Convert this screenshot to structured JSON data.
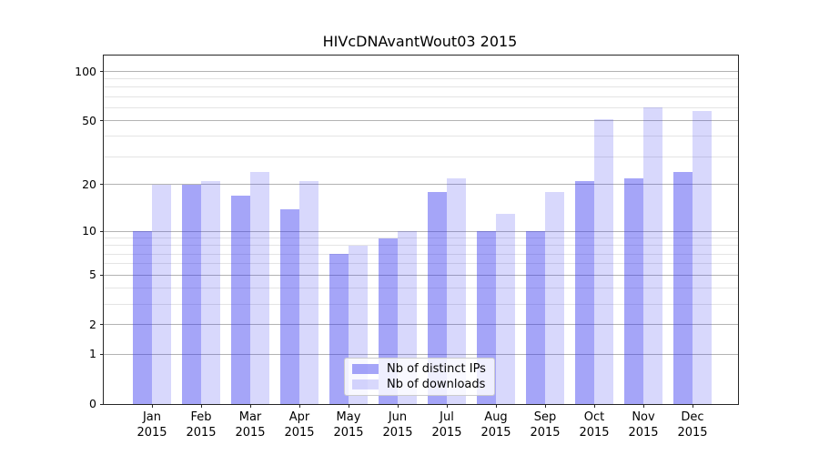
{
  "figure": {
    "background": "#ffffff",
    "spine_color": "#262626"
  },
  "chart_data": {
    "type": "bar",
    "title": "HIVcDNAvantWout03 2015",
    "categories": [
      "Jan",
      "Feb",
      "Mar",
      "Apr",
      "May",
      "Jun",
      "Jul",
      "Aug",
      "Sep",
      "Oct",
      "Nov",
      "Dec"
    ],
    "year_label": "2015",
    "series": [
      {
        "name": "Nb of distinct IPs",
        "color": "rgba(50,50,240,0.44)",
        "values": [
          10,
          20,
          17,
          14,
          7,
          9,
          18,
          10,
          10,
          21,
          22,
          24
        ]
      },
      {
        "name": "Nb of downloads",
        "color": "rgba(50,50,240,0.19)",
        "values": [
          20,
          21,
          24,
          21,
          8,
          10,
          22,
          13,
          18,
          51,
          60,
          57
        ]
      }
    ],
    "xlabel": "",
    "ylabel": "",
    "y_axis": {
      "scale": "log1p",
      "major_ticks": [
        0,
        1,
        2,
        5,
        10,
        20,
        50,
        100
      ],
      "minor_ticks": [
        3,
        4,
        6,
        7,
        8,
        9,
        30,
        40,
        60,
        70,
        80,
        90
      ],
      "range": [
        0,
        125
      ]
    },
    "grid": true,
    "legend_position": "lower center"
  },
  "legend": {
    "items": [
      {
        "label": "Nb of distinct IPs"
      },
      {
        "label": "Nb of downloads"
      }
    ]
  }
}
